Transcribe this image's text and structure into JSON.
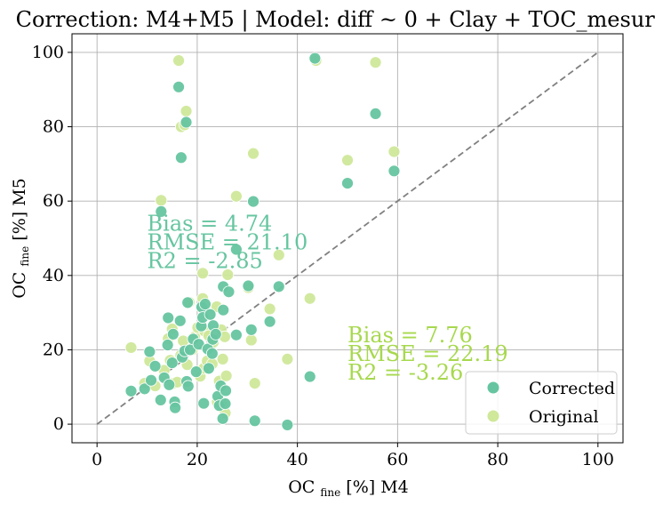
{
  "chart_data": {
    "type": "scatter",
    "title": "Correction: M4+M5 | Model: diff ~ 0 + Clay + TOC_mesured",
    "xlabel": {
      "main": "OC",
      "sub": "fine",
      "rest": "[%] M4"
    },
    "ylabel": {
      "main": "OC",
      "sub": "fine",
      "rest": "[%] M5"
    },
    "xlim": [
      -5,
      105
    ],
    "ylim": [
      -5,
      105
    ],
    "xticks": [
      0,
      20,
      40,
      60,
      80,
      100
    ],
    "yticks": [
      0,
      20,
      40,
      60,
      80,
      100
    ],
    "grid": true,
    "legend_position": "bottom-right",
    "reference_line": {
      "x": [
        0,
        100
      ],
      "y": [
        0,
        100
      ],
      "style": "dashed",
      "color": "#808080"
    },
    "series": [
      {
        "name": "Original",
        "color": "#cfe89a",
        "points": [
          [
            16.3,
            97.8
          ],
          [
            17.8,
            84.2
          ],
          [
            16.8,
            80.0
          ],
          [
            12.8,
            60.2
          ],
          [
            17.5,
            80.5
          ],
          [
            31.2,
            72.8
          ],
          [
            27.8,
            61.3
          ],
          [
            43.7,
            97.8
          ],
          [
            55.6,
            97.3
          ],
          [
            59.3,
            73.3
          ],
          [
            50.0,
            71.0
          ],
          [
            36.3,
            45.5
          ],
          [
            42.5,
            33.8
          ],
          [
            34.5,
            31.0
          ],
          [
            38.0,
            17.5
          ],
          [
            31.5,
            11.0
          ],
          [
            30.8,
            22.6
          ],
          [
            6.8,
            20.6
          ],
          [
            10.5,
            17.0
          ],
          [
            9.5,
            11.0
          ],
          [
            11.6,
            10.3
          ],
          [
            13.4,
            13.0
          ],
          [
            14.6,
            17.2
          ],
          [
            15.1,
            10.9
          ],
          [
            16.0,
            11.3
          ],
          [
            14.2,
            23.0
          ],
          [
            15.0,
            25.6
          ],
          [
            16.7,
            18.5
          ],
          [
            17.2,
            22.4
          ],
          [
            18.0,
            16.0
          ],
          [
            18.4,
            32.8
          ],
          [
            19.0,
            20.0
          ],
          [
            19.5,
            23.5
          ],
          [
            20.1,
            26.0
          ],
          [
            20.6,
            12.9
          ],
          [
            21.3,
            15.0
          ],
          [
            21.1,
            33.8
          ],
          [
            21.1,
            40.6
          ],
          [
            21.5,
            25.0
          ],
          [
            22.0,
            17.0
          ],
          [
            22.3,
            23.8
          ],
          [
            23.0,
            16.2
          ],
          [
            23.2,
            22.0
          ],
          [
            23.9,
            31.6
          ],
          [
            24.4,
            11.6
          ],
          [
            24.8,
            25.4
          ],
          [
            25.1,
            17.5
          ],
          [
            25.5,
            23.5
          ],
          [
            25.8,
            13.0
          ],
          [
            25.6,
            3.0
          ],
          [
            25.0,
            5.4
          ],
          [
            26.1,
            40.2
          ],
          [
            30.2,
            36.7
          ],
          [
            24.0,
            6.0
          ],
          [
            13.4,
            14.5
          ]
        ]
      },
      {
        "name": "Corrected",
        "color": "#66c5a0",
        "points": [
          [
            16.3,
            90.7
          ],
          [
            17.8,
            81.2
          ],
          [
            16.8,
            71.7
          ],
          [
            12.8,
            57.2
          ],
          [
            43.5,
            98.4
          ],
          [
            55.6,
            83.5
          ],
          [
            59.3,
            68.1
          ],
          [
            50.0,
            64.8
          ],
          [
            31.2,
            59.9
          ],
          [
            27.8,
            47.0
          ],
          [
            36.3,
            37.0
          ],
          [
            34.5,
            27.6
          ],
          [
            42.5,
            12.8
          ],
          [
            31.5,
            0.9
          ],
          [
            38.0,
            -0.2
          ],
          [
            30.8,
            25.4
          ],
          [
            6.8,
            8.9
          ],
          [
            9.5,
            9.5
          ],
          [
            10.5,
            19.5
          ],
          [
            10.8,
            11.8
          ],
          [
            11.6,
            15.6
          ],
          [
            12.7,
            6.5
          ],
          [
            13.4,
            12.5
          ],
          [
            14.2,
            28.6
          ],
          [
            14.1,
            21.3
          ],
          [
            14.4,
            10.6
          ],
          [
            15.0,
            16.5
          ],
          [
            15.5,
            6.0
          ],
          [
            15.6,
            4.4
          ],
          [
            15.2,
            24.2
          ],
          [
            16.6,
            27.8
          ],
          [
            17.0,
            18.0
          ],
          [
            17.5,
            19.7
          ],
          [
            17.9,
            11.5
          ],
          [
            18.1,
            32.7
          ],
          [
            18.2,
            10.2
          ],
          [
            18.6,
            20.0
          ],
          [
            19.2,
            22.9
          ],
          [
            19.8,
            14.1
          ],
          [
            20.3,
            21.5
          ],
          [
            20.8,
            26.4
          ],
          [
            20.9,
            31.5
          ],
          [
            21.1,
            28.7
          ],
          [
            21.3,
            5.6
          ],
          [
            21.6,
            32.3
          ],
          [
            22.1,
            20.2
          ],
          [
            22.3,
            15.0
          ],
          [
            22.6,
            29.5
          ],
          [
            23.1,
            22.8
          ],
          [
            23.2,
            26.5
          ],
          [
            23.7,
            24.2
          ],
          [
            24.1,
            7.5
          ],
          [
            24.4,
            5.0
          ],
          [
            24.7,
            10.3
          ],
          [
            25.1,
            1.5
          ],
          [
            25.2,
            37.0
          ],
          [
            25.2,
            30.7
          ],
          [
            25.6,
            5.5
          ],
          [
            25.7,
            9.0
          ],
          [
            26.3,
            35.6
          ],
          [
            30.2,
            37.2
          ],
          [
            27.8,
            24.0
          ],
          [
            23.0,
            19.0
          ]
        ]
      }
    ],
    "annotations": [
      {
        "series": "Corrected",
        "color": "#66c5a0",
        "x": 10,
        "y": 52,
        "lines": [
          "Bias = 4.74",
          "RMSE = 21.10",
          "R2 = -2.85"
        ]
      },
      {
        "series": "Original",
        "color": "#a7d84e",
        "x": 50,
        "y": 22,
        "lines": [
          "Bias = 7.76",
          "RMSE = 22.19",
          "R2 = -3.26"
        ]
      }
    ],
    "legend": [
      {
        "label": "Corrected",
        "color": "#66c5a0"
      },
      {
        "label": "Original",
        "color": "#cfe89a"
      }
    ]
  }
}
